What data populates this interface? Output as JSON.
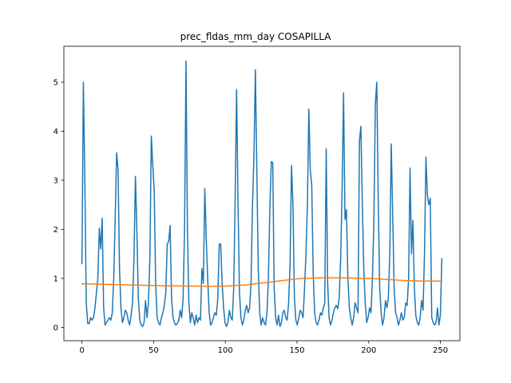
{
  "chart_data": {
    "type": "line",
    "title": "prec_fldas_mm_day COSAPILLA",
    "xlabel": "",
    "ylabel": "",
    "xlim": [
      -12.6,
      263.6
    ],
    "ylim": [
      -0.27,
      5.73
    ],
    "xticks": [
      0,
      50,
      100,
      150,
      200,
      250
    ],
    "yticks": [
      0,
      1,
      2,
      3,
      4,
      5
    ],
    "grid": false,
    "series": [
      {
        "color": "#1f77b4",
        "values": [
          1.3,
          5.0,
          3.0,
          0.5,
          0.08,
          0.08,
          0.2,
          0.15,
          0.2,
          0.4,
          0.7,
          1.0,
          2.02,
          1.6,
          2.23,
          0.4,
          0.05,
          0.1,
          0.15,
          0.2,
          0.15,
          0.3,
          1.0,
          2.2,
          3.56,
          3.2,
          1.2,
          0.4,
          0.1,
          0.2,
          0.35,
          0.3,
          0.15,
          0.05,
          0.25,
          0.5,
          1.4,
          3.08,
          2.0,
          0.6,
          0.15,
          0.05,
          0.02,
          0.1,
          0.55,
          0.2,
          0.5,
          1.4,
          3.9,
          3.3,
          2.8,
          0.9,
          0.2,
          0.1,
          0.05,
          0.2,
          0.3,
          0.45,
          0.7,
          1.7,
          1.75,
          2.08,
          0.6,
          0.2,
          0.1,
          0.05,
          0.08,
          0.15,
          0.35,
          0.2,
          0.6,
          2.0,
          5.43,
          2.0,
          0.5,
          0.1,
          0.3,
          0.2,
          0.05,
          0.25,
          0.1,
          0.2,
          0.15,
          1.2,
          0.9,
          2.83,
          1.8,
          1.0,
          0.3,
          0.05,
          0.1,
          0.2,
          0.3,
          0.25,
          0.6,
          1.7,
          1.7,
          0.9,
          0.4,
          0.1,
          0.02,
          0.1,
          0.35,
          0.2,
          0.15,
          0.8,
          2.6,
          4.85,
          2.5,
          0.7,
          0.2,
          0.05,
          0.15,
          0.35,
          0.45,
          0.3,
          0.4,
          0.9,
          2.5,
          3.5,
          5.25,
          3.2,
          1.2,
          0.3,
          0.05,
          0.2,
          0.1,
          0.05,
          0.3,
          1.0,
          2.4,
          3.38,
          3.36,
          0.8,
          0.2,
          0.05,
          0.25,
          0.02,
          0.1,
          0.3,
          0.35,
          0.2,
          0.15,
          0.5,
          1.3,
          3.3,
          2.5,
          0.6,
          0.15,
          0.05,
          0.2,
          0.35,
          0.3,
          0.2,
          0.8,
          1.5,
          2.5,
          4.45,
          3.2,
          2.9,
          1.1,
          0.3,
          0.1,
          0.05,
          0.15,
          0.3,
          0.25,
          0.4,
          0.5,
          3.64,
          0.9,
          0.2,
          0.05,
          0.15,
          0.3,
          0.4,
          0.45,
          0.38,
          0.6,
          1.4,
          2.8,
          4.78,
          2.2,
          2.4,
          1.0,
          0.4,
          0.2,
          0.05,
          0.2,
          0.5,
          0.4,
          0.3,
          3.8,
          4.1,
          2.5,
          1.2,
          0.5,
          0.1,
          0.2,
          0.4,
          0.3,
          1.0,
          2.2,
          4.55,
          5.0,
          2.6,
          0.8,
          0.3,
          0.05,
          0.2,
          0.55,
          0.4,
          0.6,
          1.5,
          3.74,
          2.3,
          0.8,
          0.3,
          0.2,
          0.05,
          0.15,
          0.3,
          0.15,
          0.2,
          0.5,
          0.45,
          1.0,
          3.25,
          1.5,
          2.18,
          0.8,
          0.25,
          0.1,
          0.05,
          0.2,
          0.55,
          0.35,
          1.5,
          3.47,
          2.7,
          2.5,
          2.63,
          0.2,
          0.1,
          0.05,
          0.1,
          0.4,
          0.05,
          0.25,
          1.4
        ]
      },
      {
        "color": "#ff7f0e",
        "values": [
          0.89,
          0.888,
          0.886,
          0.884,
          0.882,
          0.88,
          0.878,
          0.876,
          0.874,
          0.872,
          0.87,
          0.868,
          0.866,
          0.864,
          0.862,
          0.86,
          0.858,
          0.856,
          0.854,
          0.852,
          0.85,
          0.849,
          0.848,
          0.847,
          0.846,
          0.845,
          0.844,
          0.843,
          0.842,
          0.841,
          0.84,
          0.84,
          0.84,
          0.84,
          0.84,
          0.84,
          0.845,
          0.85,
          0.855,
          0.86,
          0.865,
          0.87,
          0.88,
          0.89,
          0.9,
          0.91,
          0.92,
          0.93,
          0.94,
          0.95,
          0.96,
          0.97,
          0.98,
          0.99,
          0.995,
          1.0,
          1.003,
          1.006,
          1.008,
          1.01,
          1.01,
          1.01,
          1.01,
          1.01,
          1.01,
          1.01,
          1.008,
          1.006,
          1.004,
          1.002,
          1.0,
          0.998,
          0.996,
          0.99,
          0.985,
          0.98,
          0.975,
          0.97,
          0.965,
          0.96,
          0.955,
          0.952,
          0.95,
          0.948,
          0.946,
          0.945,
          0.945,
          0.945,
          0.945,
          0.945
        ]
      }
    ]
  }
}
